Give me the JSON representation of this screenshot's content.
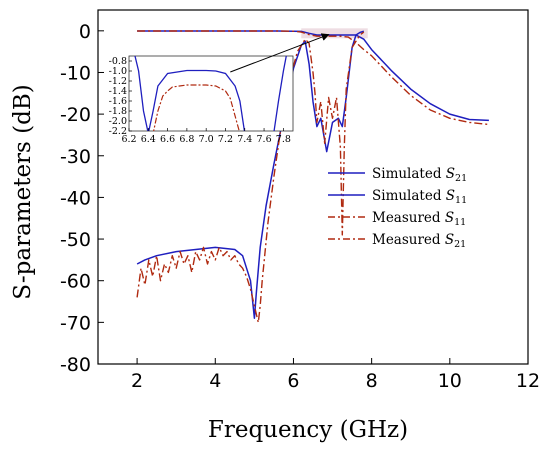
{
  "chart_data": {
    "type": "line",
    "xlabel": "Frequency (GHz)",
    "ylabel": "S-parameters (dB)",
    "xlim": [
      1,
      12
    ],
    "ylim": [
      -80,
      5
    ],
    "xticks": [
      "2",
      "4",
      "6",
      "8",
      "10",
      "12"
    ],
    "yticks": [
      "0",
      "-10",
      "-20",
      "-30",
      "-40",
      "-50",
      "-60",
      "-70",
      "-80"
    ],
    "legend": {
      "placement": "right",
      "entries": [
        {
          "prefix": "Simulated ",
          "sym": "S",
          "sub": "21"
        },
        {
          "prefix": "Simulated ",
          "sym": "S",
          "sub": "11"
        },
        {
          "prefix": "Measured ",
          "sym": "S",
          "sub": "11"
        },
        {
          "prefix": "Measured ",
          "sym": "S",
          "sub": "21"
        }
      ]
    },
    "colors": {
      "simulated": "#1f1fbf",
      "measured": "#b02a10",
      "band": "#d9b3c2"
    },
    "series": [
      {
        "key": "sim_s21",
        "style": "solid",
        "x": [
          2.0,
          3.0,
          4.0,
          5.0,
          5.6,
          6.0,
          6.2,
          6.4,
          6.6,
          6.8,
          7.0,
          7.2,
          7.4,
          7.6,
          7.8,
          8.0,
          8.5,
          9.0,
          9.5,
          10.0,
          10.5,
          11.0
        ],
        "y": [
          -0.05,
          -0.05,
          -0.05,
          -0.05,
          -0.05,
          -0.08,
          -0.15,
          -0.6,
          -1.0,
          -1.0,
          -1.0,
          -1.0,
          -1.0,
          -1.0,
          -2.0,
          -4.5,
          -9.5,
          -14.0,
          -17.5,
          -20.0,
          -21.3,
          -21.5
        ]
      },
      {
        "key": "sim_s11",
        "style": "solid",
        "x": [
          2.0,
          2.2,
          2.5,
          3.0,
          3.5,
          4.0,
          4.5,
          4.7,
          4.9,
          5.0,
          5.05,
          5.15,
          5.3,
          5.5,
          5.8,
          6.0,
          6.2,
          6.3,
          6.4,
          6.5,
          6.6,
          6.7,
          6.85,
          7.0,
          7.15,
          7.25,
          7.35,
          7.5,
          7.6,
          7.7,
          7.8
        ],
        "y": [
          -56.0,
          -55.0,
          -54.0,
          -53.0,
          -52.5,
          -52.0,
          -52.5,
          -54.0,
          -60.0,
          -69.0,
          -63.0,
          -52.0,
          -42.0,
          -32.0,
          -18.0,
          -9.0,
          -3.5,
          -2.5,
          -8.0,
          -17.0,
          -23.0,
          -21.0,
          -29.0,
          -22.0,
          -21.0,
          -23.0,
          -16.0,
          -4.0,
          -1.0,
          -0.4,
          -0.1
        ]
      },
      {
        "key": "meas_s11",
        "style": "dashdot",
        "x": [
          2.0,
          2.1,
          2.2,
          2.3,
          2.4,
          2.5,
          2.6,
          2.7,
          2.8,
          2.9,
          3.0,
          3.1,
          3.2,
          3.3,
          3.4,
          3.5,
          3.6,
          3.7,
          3.8,
          3.9,
          4.0,
          4.1,
          4.2,
          4.3,
          4.4,
          4.5,
          4.6,
          4.7,
          4.8,
          4.9,
          5.0,
          5.05,
          5.1,
          5.15,
          5.2,
          5.35,
          5.5,
          5.7,
          5.9,
          6.1,
          6.3,
          6.4,
          6.5,
          6.55,
          6.6,
          6.7,
          6.8,
          6.9,
          7.0,
          7.1,
          7.2,
          7.25,
          7.3,
          7.35,
          7.5,
          7.7,
          7.8
        ],
        "y": [
          -64.0,
          -57.0,
          -61.0,
          -55.0,
          -59.0,
          -54.0,
          -60.0,
          -56.0,
          -58.0,
          -54.0,
          -57.0,
          -53.0,
          -56.0,
          -54.0,
          -58.0,
          -53.0,
          -55.0,
          -52.0,
          -56.0,
          -53.0,
          -55.0,
          -52.0,
          -54.0,
          -53.0,
          -55.0,
          -54.0,
          -56.0,
          -57.0,
          -59.0,
          -62.0,
          -66.0,
          -68.0,
          -70.0,
          -66.0,
          -60.0,
          -46.0,
          -35.0,
          -22.0,
          -12.0,
          -5.0,
          -2.0,
          -3.0,
          -10.0,
          -15.0,
          -22.0,
          -17.0,
          -27.0,
          -16.0,
          -21.0,
          -16.0,
          -28.0,
          -49.0,
          -28.0,
          -14.0,
          -4.0,
          -1.0,
          -0.3
        ]
      },
      {
        "key": "meas_s21",
        "style": "dashdot",
        "x": [
          2.0,
          3.0,
          4.0,
          5.0,
          5.6,
          6.0,
          6.2,
          6.4,
          6.6,
          6.8,
          7.0,
          7.2,
          7.4,
          7.6,
          7.8,
          8.0,
          8.5,
          9.0,
          9.5,
          10.0,
          10.5,
          11.0
        ],
        "y": [
          -0.05,
          -0.05,
          -0.05,
          -0.05,
          -0.05,
          -0.1,
          -0.3,
          -0.9,
          -1.3,
          -1.3,
          -1.3,
          -1.3,
          -1.5,
          -2.8,
          -4.5,
          -6.0,
          -11.0,
          -15.5,
          -19.0,
          -21.0,
          -22.0,
          -22.5
        ]
      }
    ],
    "inset": {
      "xlim": [
        6.2,
        7.9
      ],
      "ylim": [
        -2.2,
        -0.7
      ],
      "xticks": [
        "6.2",
        "6.4",
        "6.6",
        "6.8",
        "7.0",
        "7.2",
        "7.4",
        "7.6",
        "7.8"
      ],
      "yticks": [
        "-0.8",
        "-1.0",
        "-1.2",
        "-1.4",
        "-1.6",
        "-1.8",
        "-2.0",
        "-2.2"
      ],
      "sim_s21": {
        "x": [
          6.2,
          6.3,
          6.35,
          6.4,
          6.45,
          6.5,
          6.6,
          6.8,
          7.0,
          7.1,
          7.2,
          7.3,
          7.35,
          7.4,
          7.5,
          7.6,
          7.7,
          7.75,
          7.8,
          7.85
        ],
        "y": [
          -0.2,
          -1.0,
          -1.8,
          -2.25,
          -1.8,
          -1.3,
          -1.05,
          -0.99,
          -0.99,
          -1.0,
          -1.05,
          -1.3,
          -1.6,
          -2.25,
          -3.0,
          -3.0,
          -2.25,
          -1.6,
          -1.0,
          -0.5
        ]
      },
      "meas_s21": {
        "x": [
          6.4,
          6.45,
          6.5,
          6.55,
          6.6,
          6.65,
          6.8,
          7.0,
          7.1,
          7.2,
          7.25,
          7.3,
          7.35
        ],
        "y": [
          -3.0,
          -2.25,
          -1.8,
          -1.5,
          -1.4,
          -1.32,
          -1.28,
          -1.28,
          -1.3,
          -1.4,
          -1.55,
          -1.9,
          -2.25
        ]
      }
    }
  }
}
